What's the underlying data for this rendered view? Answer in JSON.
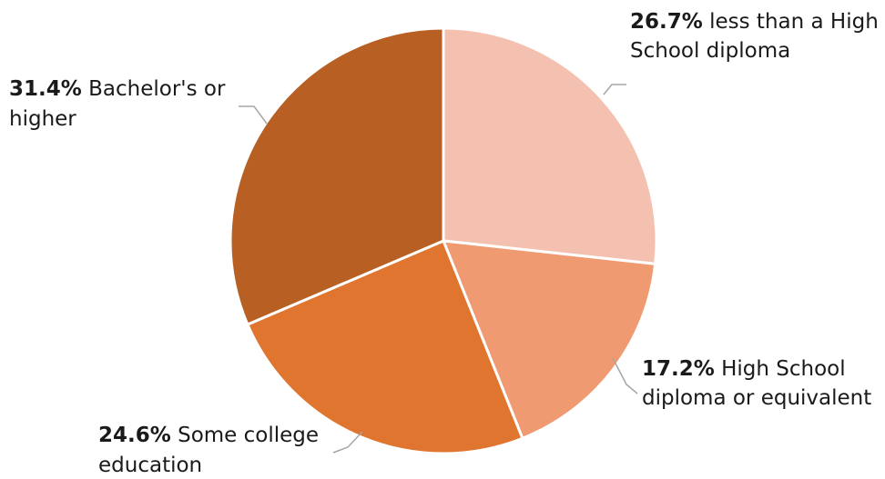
{
  "chart_data": {
    "type": "pie",
    "title": "",
    "start_angle_deg": 0,
    "direction": "clockwise",
    "slices": [
      {
        "name": "less than a High School diploma",
        "value": 26.7,
        "pct_label": "26.7%",
        "text_line1": " less than a High",
        "text_line2": "School diploma",
        "color": "#F4C1B0"
      },
      {
        "name": "High School diploma or equivalent",
        "value": 17.2,
        "pct_label": "17.2%",
        "text_line1": " High School",
        "text_line2": "diploma or equivalent",
        "color": "#F09A72"
      },
      {
        "name": "Some college education",
        "value": 24.6,
        "pct_label": "24.6%",
        "text_line1": " Some college",
        "text_line2": "education",
        "color": "#DF752F"
      },
      {
        "name": "Bachelor's or higher",
        "value": 31.4,
        "pct_label": "31.4%",
        "text_line1": " Bachelor's or",
        "text_line2": "higher",
        "color": "#B86023"
      }
    ]
  }
}
